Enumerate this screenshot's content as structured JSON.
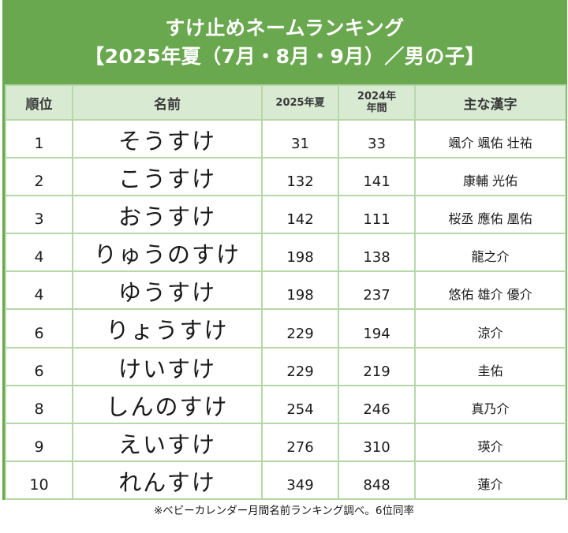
{
  "title": {
    "line1": "すけ止めネームランキング",
    "line2": "【2025年夏（7月・8月・9月）／男の子】"
  },
  "colors": {
    "accent": "#6aa84f",
    "header_bg": "#d9ead3",
    "grid": "#b6d7a8"
  },
  "table": {
    "headers": {
      "rank": "順位",
      "name": "名前",
      "y2025": "2025年夏",
      "y2024_line1": "2024年",
      "y2024_line2": "年間",
      "kanji": "主な漢字"
    },
    "rows": [
      {
        "rank": "1",
        "name": "そうすけ",
        "y2025": "31",
        "y2024": "33",
        "kanji": "颯介 颯佑 壮祐"
      },
      {
        "rank": "2",
        "name": "こうすけ",
        "y2025": "132",
        "y2024": "141",
        "kanji": "康輔 光佑"
      },
      {
        "rank": "3",
        "name": "おうすけ",
        "y2025": "142",
        "y2024": "111",
        "kanji": "桜丞 應佑 凰佑"
      },
      {
        "rank": "4",
        "name": "りゅうのすけ",
        "y2025": "198",
        "y2024": "138",
        "kanji": "龍之介"
      },
      {
        "rank": "4",
        "name": "ゆうすけ",
        "y2025": "198",
        "y2024": "237",
        "kanji": "悠佑 雄介 優介"
      },
      {
        "rank": "6",
        "name": "りょうすけ",
        "y2025": "229",
        "y2024": "194",
        "kanji": "涼介"
      },
      {
        "rank": "6",
        "name": "けいすけ",
        "y2025": "229",
        "y2024": "219",
        "kanji": "圭佑"
      },
      {
        "rank": "8",
        "name": "しんのすけ",
        "y2025": "254",
        "y2024": "246",
        "kanji": "真乃介"
      },
      {
        "rank": "9",
        "name": "えいすけ",
        "y2025": "276",
        "y2024": "310",
        "kanji": "瑛介"
      },
      {
        "rank": "10",
        "name": "れんすけ",
        "y2025": "349",
        "y2024": "848",
        "kanji": "蓮介"
      }
    ]
  },
  "footnote": "※ベビーカレンダー月間名前ランキング調べ。6位同率"
}
